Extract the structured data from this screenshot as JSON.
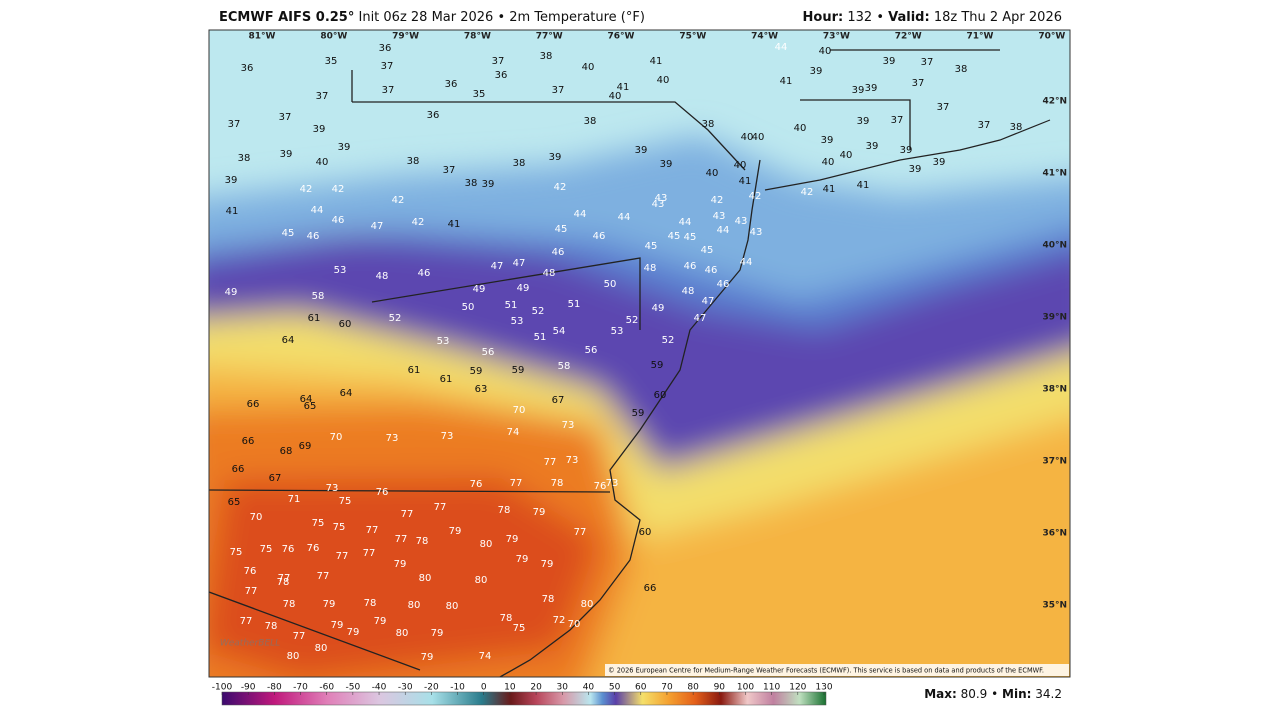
{
  "header": {
    "model": "ECMWF AIFS 0.25°",
    "run": "Init 06z 28 Mar 2026 • 2m Temperature (°F)",
    "hour_label": "Hour:",
    "hour": "132 •",
    "valid_label": "Valid:",
    "valid": "18z Thu 2 Apr 2026"
  },
  "map": {
    "longitudes": [
      "81°W",
      "80°W",
      "79°W",
      "78°W",
      "77°W",
      "76°W",
      "75°W",
      "74°W",
      "73°W",
      "72°W",
      "71°W",
      "70°W"
    ],
    "latitudes": [
      "42°N",
      "41°N",
      "40°N",
      "39°N",
      "38°N",
      "37°N",
      "36°N",
      "35°N"
    ],
    "stations": [
      36,
      35,
      36,
      37,
      37,
      37,
      36,
      36,
      35,
      37,
      38,
      40,
      37,
      41,
      40,
      41,
      40,
      44,
      40,
      39,
      41,
      39,
      37,
      38,
      37,
      39,
      39,
      37,
      37,
      39,
      36,
      38,
      38,
      40,
      40,
      40,
      37,
      39,
      37,
      37,
      38,
      38,
      39,
      40,
      39,
      38,
      37,
      38,
      39,
      39,
      39,
      40,
      39,
      40,
      40,
      39,
      39,
      39,
      39,
      39,
      38,
      39,
      40,
      41,
      42,
      42,
      41,
      41,
      42,
      42,
      42,
      41,
      44,
      46,
      47,
      42,
      41,
      42,
      44,
      44,
      43,
      43,
      44,
      42,
      43,
      43,
      44,
      43,
      45,
      46,
      45,
      46,
      45,
      45,
      45,
      45,
      46,
      47,
      47,
      48,
      53,
      48,
      46,
      48,
      46,
      46,
      44,
      49,
      58,
      49,
      49,
      50,
      51,
      52,
      51,
      50,
      48,
      46,
      47,
      47,
      61,
      60,
      52,
      53,
      53,
      54,
      51,
      53,
      52,
      49,
      52,
      64,
      56,
      56,
      58,
      61,
      61,
      59,
      59,
      59,
      64,
      63,
      66,
      64,
      65,
      67,
      60,
      59,
      70,
      66,
      69,
      68,
      70,
      73,
      73,
      74,
      73,
      66,
      67,
      77,
      73,
      65,
      71,
      73,
      75,
      76,
      76,
      77,
      78,
      76,
      73,
      70,
      75,
      75,
      77,
      77,
      77,
      78,
      79,
      77,
      60,
      75,
      75,
      76,
      76,
      77,
      77,
      77,
      78,
      79,
      80,
      79,
      76,
      77,
      77,
      79,
      79,
      79,
      77,
      78,
      80,
      80,
      66,
      78,
      79,
      78,
      80,
      80,
      78,
      80,
      77,
      78,
      79,
      79,
      79,
      78,
      75,
      72,
      70,
      80,
      79,
      77,
      80,
      80,
      79,
      74
    ],
    "watermark": "WeatherBELL",
    "credit": "© 2026 European Centre for Medium-Range Weather Forecasts (ECMWF). This service is based on data and products of the ECMWF."
  },
  "colorbar": {
    "ticks": [
      -100,
      -90,
      -80,
      -70,
      -60,
      -50,
      -40,
      -30,
      -20,
      -10,
      0,
      10,
      20,
      30,
      40,
      50,
      60,
      70,
      80,
      90,
      100,
      110,
      120,
      130
    ]
  },
  "stats": {
    "max_label": "Max:",
    "max": 80.9,
    "sep": "•",
    "min_label": "Min:",
    "min": 34.2
  }
}
